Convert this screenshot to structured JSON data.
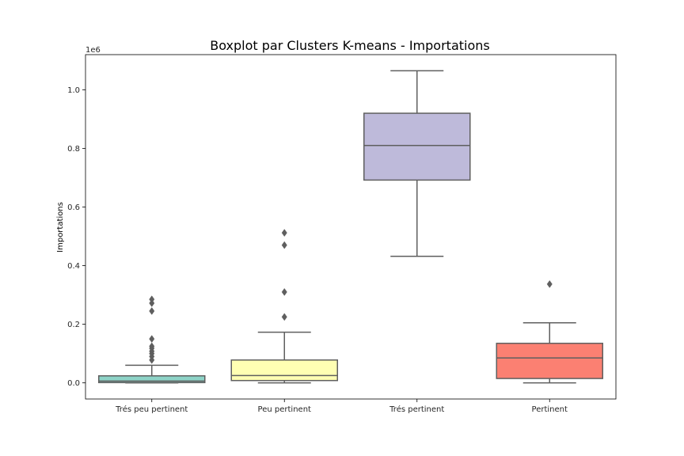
{
  "chart_data": {
    "type": "boxplot",
    "title": "Boxplot par Clusters K-means - Importations",
    "xlabel": "",
    "ylabel": "Importations",
    "y_offset_label": "1e6",
    "y_scale": 1000000,
    "ylim": [
      -55000,
      1120000
    ],
    "y_ticks": [
      0.0,
      0.2,
      0.4,
      0.6,
      0.8,
      1.0
    ],
    "y_tick_labels": [
      "0.0",
      "0.2",
      "0.4",
      "0.6",
      "0.8",
      "1.0"
    ],
    "grid": false,
    "categories": [
      "Trés peu pertinent",
      "Peu pertinent",
      "Trés pertinent",
      "Pertinent"
    ],
    "boxes": [
      {
        "category": "Trés peu pertinent",
        "color": "#8dd3c7",
        "whisker_low": 0,
        "q1": 1000,
        "median": 6000,
        "q3": 24000,
        "whisker_high": 60000,
        "outliers": [
          78000,
          90000,
          100000,
          108000,
          118000,
          125000,
          150000,
          245000,
          272000,
          285000
        ]
      },
      {
        "category": "Peu pertinent",
        "color": "#ffffb3",
        "whisker_low": 0,
        "q1": 8000,
        "median": 25000,
        "q3": 78000,
        "whisker_high": 173000,
        "outliers": [
          225000,
          310000,
          470000,
          512000
        ]
      },
      {
        "category": "Trés pertinent",
        "color": "#bebada",
        "whisker_low": 432000,
        "q1": 692000,
        "median": 810000,
        "q3": 920000,
        "whisker_high": 1065000,
        "outliers": []
      },
      {
        "category": "Pertinent",
        "color": "#fb8072",
        "whisker_low": 0,
        "q1": 15000,
        "median": 85000,
        "q3": 135000,
        "whisker_high": 205000,
        "outliers": [
          337000
        ]
      }
    ],
    "line_color": "#5f5f5f"
  }
}
